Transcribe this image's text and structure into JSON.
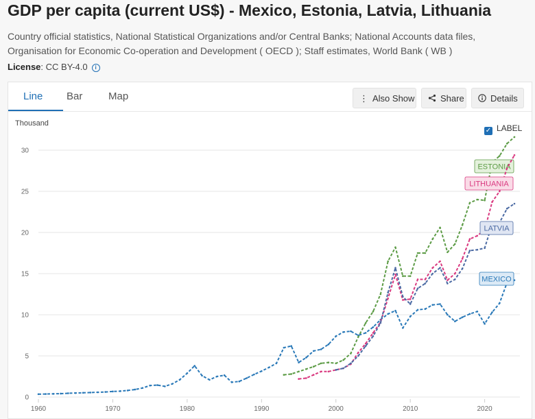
{
  "header": {
    "title": "GDP per capita (current US$) - Mexico, Estonia, Latvia, Lithuania",
    "source": "Country official statistics, National Statistical Organizations and/or Central Banks; National Accounts data files, Organisation for Economic Co-operation and Development ( OECD ); Staff estimates, World Bank ( WB )",
    "license_label": "License",
    "license_value": ": CC BY-4.0"
  },
  "tabs": [
    {
      "label": "Line"
    },
    {
      "label": "Bar"
    },
    {
      "label": "Map"
    }
  ],
  "toolbar": {
    "also_show": "Also Show",
    "share": "Share",
    "details": "Details"
  },
  "chart_controls": {
    "unit": "Thousand",
    "label_toggle": "LABEL",
    "label_checked": true
  },
  "chart_data": {
    "type": "line",
    "title": "",
    "xlabel": "",
    "ylabel": "Thousand",
    "xlim": [
      1960,
      2024
    ],
    "ylim": [
      0,
      33
    ],
    "x_ticks": [
      1960,
      1970,
      1980,
      1990,
      2000,
      2010,
      2020
    ],
    "y_ticks": [
      0,
      5,
      10,
      15,
      20,
      25,
      30
    ],
    "grid": "horizontal",
    "line_style": "dotted with markers",
    "series": [
      {
        "name": "MEXICO",
        "color": "#2a79b8",
        "label_fill": "#dceaf6",
        "x": [
          1960,
          1961,
          1962,
          1963,
          1964,
          1965,
          1966,
          1967,
          1968,
          1969,
          1970,
          1971,
          1972,
          1973,
          1974,
          1975,
          1976,
          1977,
          1978,
          1979,
          1980,
          1981,
          1982,
          1983,
          1984,
          1985,
          1986,
          1987,
          1988,
          1989,
          1990,
          1991,
          1992,
          1993,
          1994,
          1995,
          1996,
          1997,
          1998,
          1999,
          2000,
          2001,
          2002,
          2003,
          2004,
          2005,
          2006,
          2007,
          2008,
          2009,
          2010,
          2011,
          2012,
          2013,
          2014,
          2015,
          2016,
          2017,
          2018,
          2019,
          2020,
          2021,
          2022,
          2023,
          2024
        ],
        "y": [
          0.35,
          0.37,
          0.39,
          0.42,
          0.46,
          0.49,
          0.52,
          0.55,
          0.58,
          0.62,
          0.68,
          0.72,
          0.8,
          0.92,
          1.1,
          1.4,
          1.45,
          1.3,
          1.6,
          2.1,
          2.9,
          3.8,
          2.6,
          2.1,
          2.5,
          2.65,
          1.8,
          1.9,
          2.3,
          2.75,
          3.15,
          3.6,
          4.1,
          6.0,
          6.2,
          4.2,
          4.8,
          5.6,
          5.8,
          6.4,
          7.4,
          7.9,
          8.0,
          7.5,
          7.8,
          8.5,
          9.4,
          10.1,
          10.5,
          8.4,
          9.8,
          10.6,
          10.7,
          11.2,
          11.3,
          10.0,
          9.2,
          9.7,
          10.1,
          10.4,
          8.9,
          10.3,
          11.4,
          13.9,
          14.2
        ]
      },
      {
        "name": "ESTONIA",
        "color": "#5c9b45",
        "label_fill": "#e4f1dc",
        "x": [
          1993,
          1994,
          1995,
          1996,
          1997,
          1998,
          1999,
          2000,
          2001,
          2002,
          2003,
          2004,
          2005,
          2006,
          2007,
          2008,
          2009,
          2010,
          2011,
          2012,
          2013,
          2014,
          2015,
          2016,
          2017,
          2018,
          2019,
          2020,
          2021,
          2022,
          2023,
          2024
        ],
        "y": [
          2.7,
          2.8,
          3.1,
          3.4,
          3.7,
          4.1,
          4.2,
          4.1,
          4.5,
          5.3,
          7.3,
          9.0,
          10.4,
          12.5,
          16.5,
          18.2,
          14.7,
          14.7,
          17.5,
          17.5,
          19.2,
          20.6,
          17.6,
          18.6,
          20.9,
          23.6,
          24.0,
          23.9,
          28.5,
          29.3,
          30.8,
          31.6
        ]
      },
      {
        "name": "LITHUANIA",
        "color": "#d9387f",
        "label_fill": "#fadbe7",
        "x": [
          1995,
          1996,
          1997,
          1998,
          1999,
          2000,
          2001,
          2002,
          2003,
          2004,
          2005,
          2006,
          2007,
          2008,
          2009,
          2010,
          2011,
          2012,
          2013,
          2014,
          2015,
          2016,
          2017,
          2018,
          2019,
          2020,
          2021,
          2022,
          2023,
          2024
        ],
        "y": [
          2.2,
          2.3,
          2.7,
          3.1,
          3.1,
          3.3,
          3.5,
          4.0,
          5.4,
          6.5,
          7.8,
          9.1,
          12.0,
          14.9,
          11.8,
          11.9,
          14.3,
          14.3,
          15.7,
          16.5,
          14.2,
          15.0,
          16.8,
          19.2,
          19.6,
          20.3,
          23.7,
          25.0,
          27.8,
          29.4
        ]
      },
      {
        "name": "LATVIA",
        "color": "#4b6aa3",
        "label_fill": "#e0e6f3",
        "x": [
          2000,
          2001,
          2002,
          2003,
          2004,
          2005,
          2006,
          2007,
          2008,
          2009,
          2010,
          2011,
          2012,
          2013,
          2014,
          2015,
          2016,
          2017,
          2018,
          2019,
          2020,
          2021,
          2022,
          2023,
          2024
        ],
        "y": [
          3.3,
          3.5,
          4.1,
          5.0,
          6.2,
          7.4,
          9.0,
          12.7,
          15.7,
          12.2,
          11.3,
          13.2,
          13.8,
          15.0,
          15.7,
          13.8,
          14.3,
          15.6,
          17.8,
          17.9,
          18.1,
          21.0,
          21.2,
          22.9,
          23.5
        ]
      }
    ]
  }
}
